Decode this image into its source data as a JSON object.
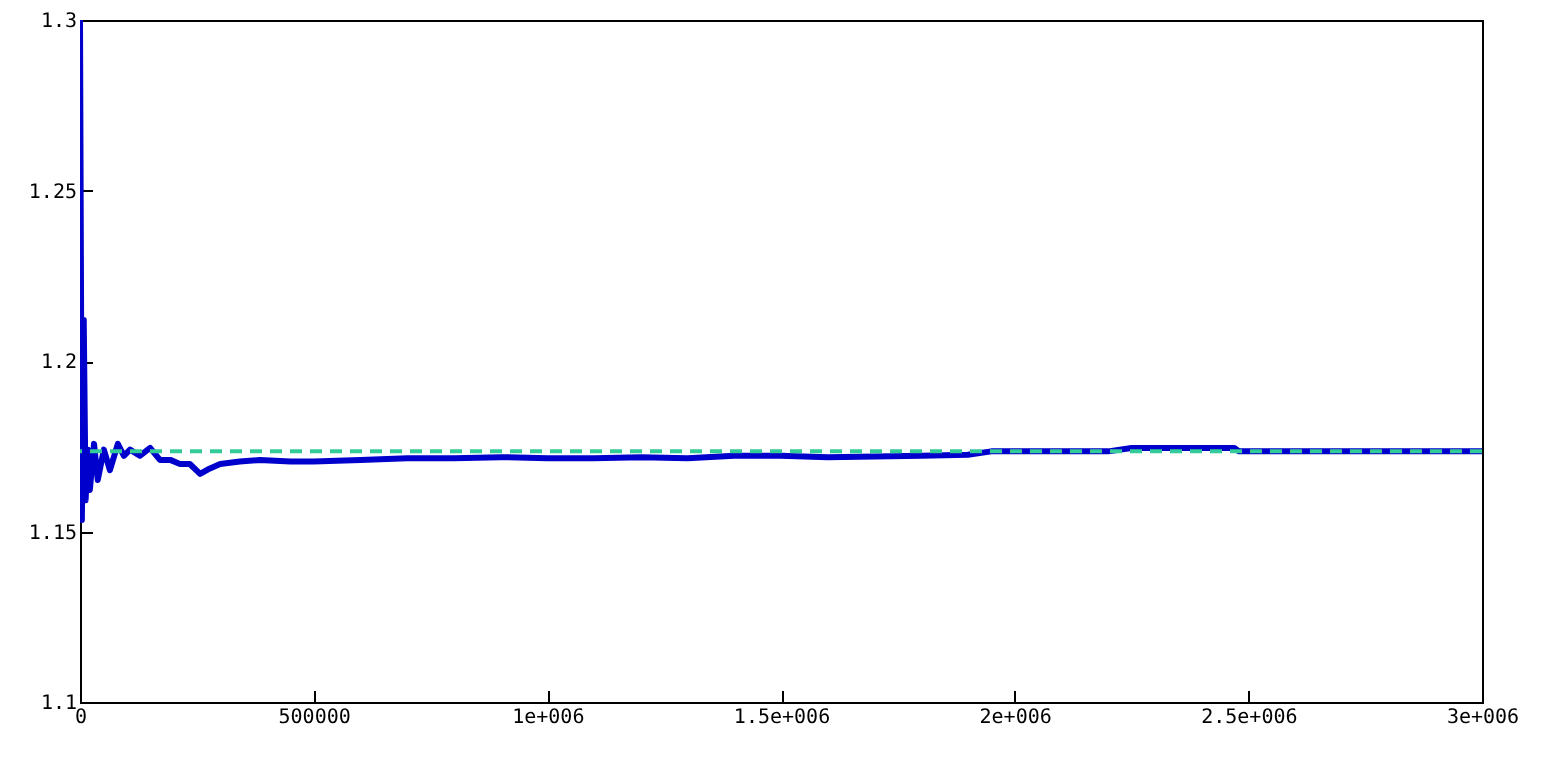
{
  "chart_data": {
    "type": "line",
    "x": [
      0,
      4000,
      8000,
      12000,
      17000,
      21000,
      30000,
      38000,
      51000,
      64000,
      81000,
      94000,
      107000,
      128000,
      150000,
      171000,
      193000,
      214000,
      235000,
      257000,
      278000,
      300000,
      342000,
      385000,
      450000,
      500000,
      600000,
      700000,
      800000,
      900000,
      1000000,
      1100000,
      1200000,
      1300000,
      1400000,
      1500000,
      1600000,
      1700000,
      1800000,
      1900000,
      1950000,
      2000000,
      2100000,
      2200000,
      2250000,
      2350000,
      2470000,
      2480000,
      2600000,
      2800000,
      3000000
    ],
    "series": [
      {
        "color": "#0000cc",
        "values": [
          1.3,
          1.1534,
          1.212,
          1.1592,
          1.174,
          1.1622,
          1.1757,
          1.1651,
          1.174,
          1.168,
          1.1757,
          1.1722,
          1.174,
          1.1722,
          1.1745,
          1.171,
          1.171,
          1.1698,
          1.1698,
          1.1669,
          1.1685,
          1.1698,
          1.1705,
          1.171,
          1.1705,
          1.1705,
          1.171,
          1.1715,
          1.1715,
          1.1718,
          1.1715,
          1.1715,
          1.1718,
          1.1715,
          1.1722,
          1.1722,
          1.1718,
          1.172,
          1.1722,
          1.1725,
          1.1735,
          1.1735,
          1.1735,
          1.1735,
          1.1745,
          1.1745,
          1.1745,
          1.1735,
          1.1735,
          1.1735,
          1.1735
        ]
      }
    ],
    "xlim": [
      0,
      3000000
    ],
    "ylim": [
      1.1,
      1.3
    ],
    "xticks": [
      0,
      500000,
      {
        "value": 1000000,
        "label": "1e+006"
      },
      {
        "value": 1500000,
        "label": "1.5e+006"
      },
      {
        "value": 2000000,
        "label": "2e+006"
      },
      {
        "value": 2500000,
        "label": "2.5e+006"
      },
      {
        "value": 3000000,
        "label": "3e+006"
      }
    ],
    "yticks": [
      1.1,
      1.15,
      1.2,
      1.25,
      1.3
    ],
    "ref_lines": [
      {
        "axis": "y",
        "value": 1.1735,
        "color": "#33cc99",
        "line_style": "dashed"
      }
    ]
  }
}
